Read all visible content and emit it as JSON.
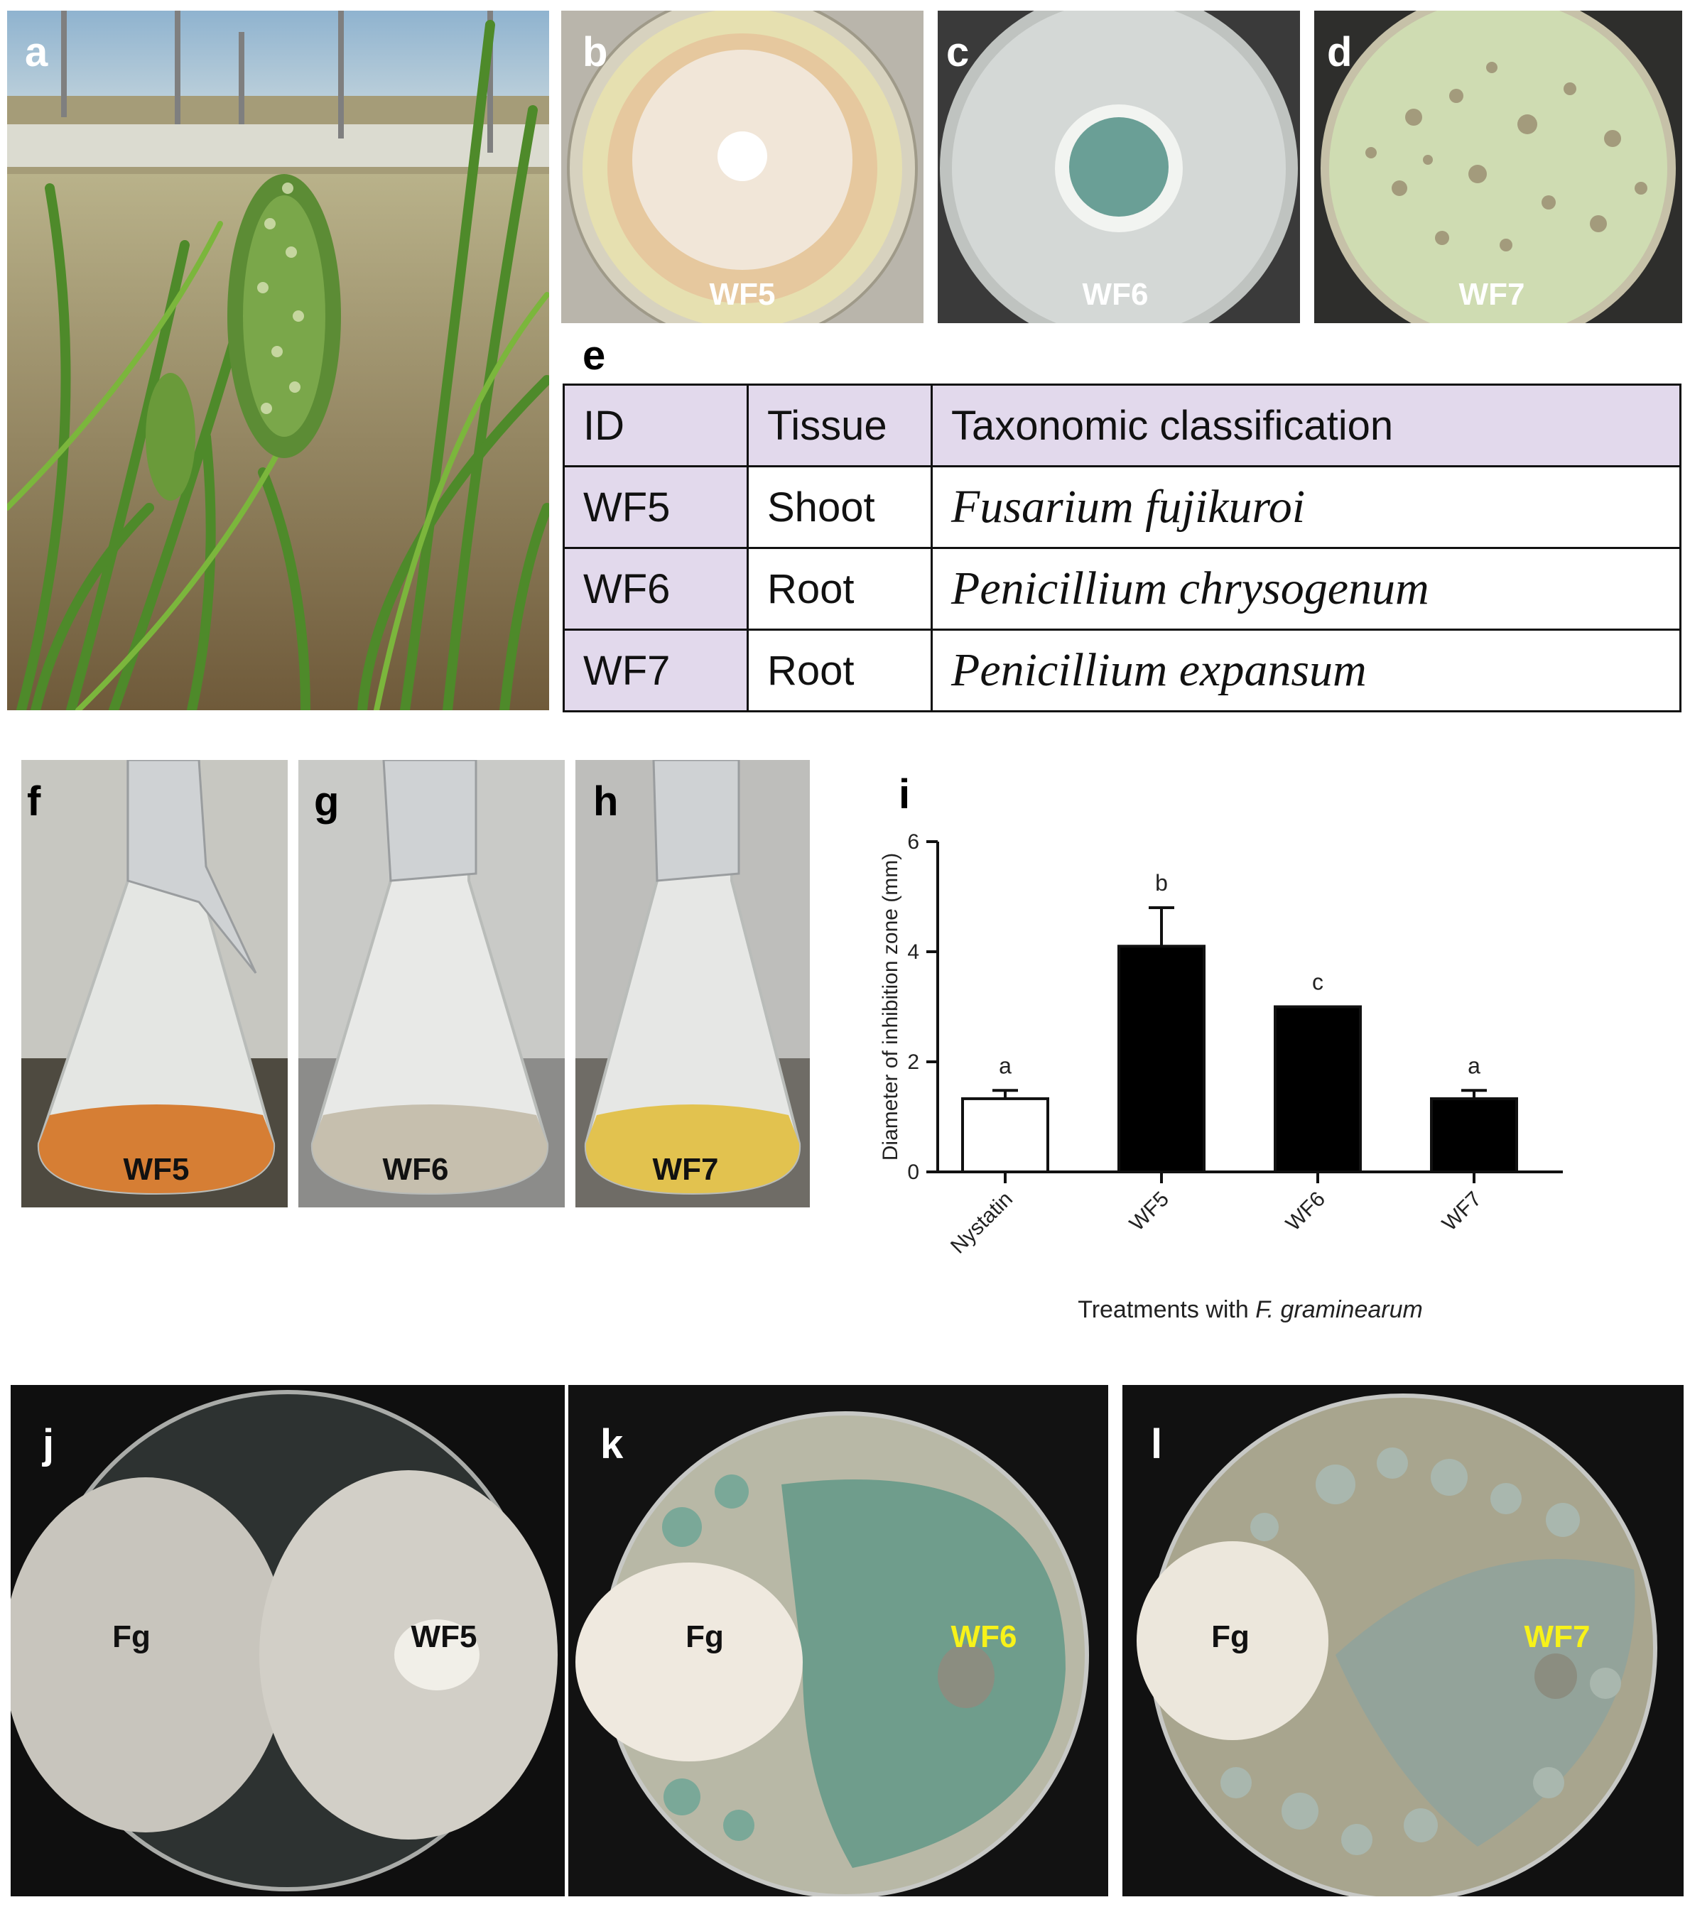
{
  "figure": {
    "panel_labels": {
      "a": "a",
      "b": "b",
      "c": "c",
      "d": "d",
      "e": "e",
      "f": "f",
      "g": "g",
      "h": "h",
      "i": "i",
      "j": "j",
      "k": "k",
      "l": "l"
    },
    "plate_captions": {
      "b": "WF5",
      "c": "WF6",
      "d": "WF7"
    },
    "flask_captions": {
      "f": "WF5",
      "g": "WF6",
      "h": "WF7"
    },
    "dual_culture": {
      "j": {
        "left": "Fg",
        "right": "WF5"
      },
      "k": {
        "left": "Fg",
        "right": "WF6"
      },
      "l": {
        "left": "Fg",
        "right": "WF7"
      }
    }
  },
  "table_e": {
    "headers": [
      "ID",
      "Tissue",
      "Taxonomic classification"
    ],
    "rows": [
      {
        "id": "WF5",
        "tissue": "Shoot",
        "taxon": "Fusarium fujikuroi"
      },
      {
        "id": "WF6",
        "tissue": "Root",
        "taxon": "Penicillium chrysogenum"
      },
      {
        "id": "WF7",
        "tissue": "Root",
        "taxon": "Penicillium expansum"
      }
    ]
  },
  "colors": {
    "bar_control": "#ffffff",
    "bar_treatment": "#000000",
    "table_shade": "#e2d9ec",
    "highlight_label": "#f7f21a"
  },
  "chart_data": {
    "type": "bar",
    "categories": [
      "Nystatin",
      "WF5",
      "WF6",
      "WF7"
    ],
    "values": [
      1.33,
      4.1,
      3.0,
      1.33
    ],
    "errors": [
      0.15,
      0.7,
      0.0,
      0.15
    ],
    "letters": [
      "a",
      "b",
      "c",
      "a"
    ],
    "ylabel": "Diameter of inhibition zone (mm)",
    "xlabel_prefix": "Treatments with ",
    "xlabel_italic": "F. graminearum",
    "ylim": [
      0,
      6
    ],
    "yticks": [
      "0",
      "2",
      "4",
      "6"
    ],
    "grid": false
  }
}
